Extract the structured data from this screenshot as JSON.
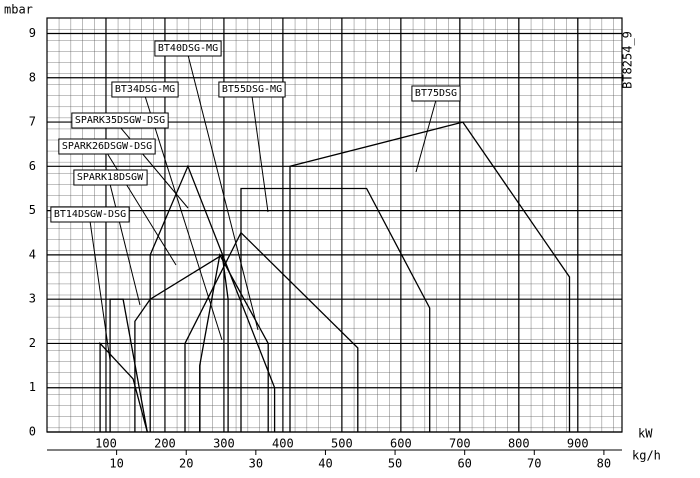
{
  "chart_data": {
    "type": "line",
    "y_label": "mbar",
    "x_label": "kW",
    "x2_label": "kg/h",
    "code": "BT8254_9",
    "xlim": [
      0,
      975
    ],
    "xticks": [
      100,
      200,
      300,
      400,
      500,
      600,
      700,
      800,
      900
    ],
    "x2lim": [
      0,
      82.6
    ],
    "x2ticks": [
      10,
      20,
      30,
      40,
      50,
      60,
      70,
      80
    ],
    "ylim": [
      0,
      9.35
    ],
    "yticks": [
      0,
      1,
      2,
      3,
      4,
      5,
      6,
      7,
      8,
      9
    ],
    "grid": true,
    "series": [
      {
        "name": "BT40DSG-MG",
        "color": "#000000",
        "x": [
          234,
          234,
          329,
          527,
          527
        ],
        "values": [
          0,
          2,
          4.5,
          1.9,
          0
        ]
      },
      {
        "name": "BT34DSG-MG",
        "color": "#000000",
        "x": [
          259,
          259,
          293,
          375,
          375
        ],
        "values": [
          0,
          1.5,
          4,
          2,
          0
        ]
      },
      {
        "name": "BT55DSG-MG",
        "color": "#000000",
        "x": [
          329,
          329,
          542,
          649,
          649
        ],
        "values": [
          0,
          5.5,
          5.5,
          2.8,
          0
        ]
      },
      {
        "name": "BT75DSG",
        "color": "#000000",
        "x": [
          412,
          412,
          705,
          886,
          886
        ],
        "values": [
          0,
          6,
          7,
          3.5,
          0
        ]
      },
      {
        "name": "SPARK35DSGW-DSG",
        "color": "#000000",
        "x": [
          175,
          175,
          239,
          386,
          386
        ],
        "values": [
          0,
          4,
          6,
          1,
          0
        ]
      },
      {
        "name": "SPARK26DSGW-DSG",
        "color": "#000000",
        "x": [
          149,
          149,
          175,
          297,
          307,
          307
        ],
        "values": [
          0,
          2.5,
          3,
          4,
          3,
          0
        ]
      },
      {
        "name": "SPARK18DSGW",
        "color": "#000000",
        "x": [
          107,
          107,
          129,
          170
        ],
        "values": [
          0,
          3,
          3,
          0
        ]
      },
      {
        "name": "BT14DSGW-DSG",
        "color": "#000000",
        "x": [
          90,
          90,
          146,
          170
        ],
        "values": [
          0,
          2,
          1.2,
          0
        ]
      }
    ]
  }
}
